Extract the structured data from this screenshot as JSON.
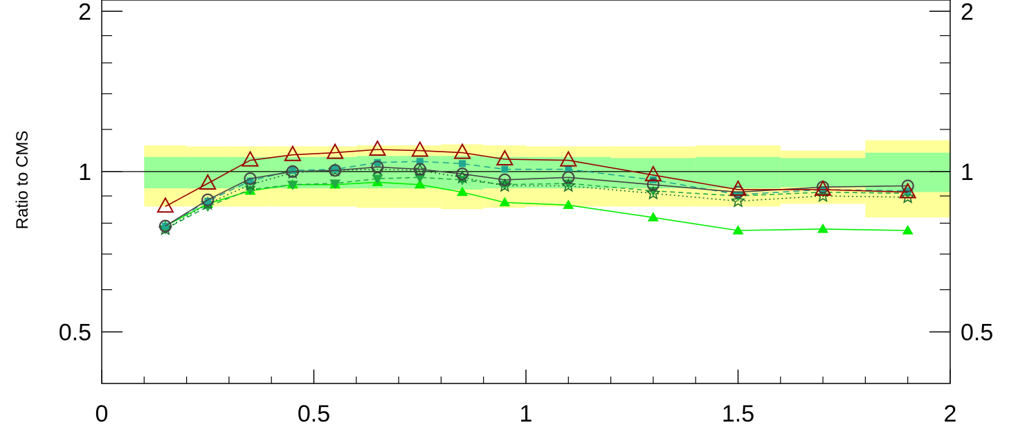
{
  "chart_data": {
    "type": "line",
    "title": "",
    "xlabel": "",
    "ylabel": "Ratio to CMS",
    "xlim": [
      0,
      2
    ],
    "ylim": [
      0.4,
      2.1
    ],
    "yscale": "log",
    "x_ticks": [
      {
        "value": 0,
        "label": "0"
      },
      {
        "value": 0.5,
        "label": "0.5"
      },
      {
        "value": 1,
        "label": "1"
      },
      {
        "value": 1.5,
        "label": "1.5"
      },
      {
        "value": 2,
        "label": "2"
      }
    ],
    "y_ticks": [
      {
        "value": 0.5,
        "label": "0.5"
      },
      {
        "value": 1,
        "label": "1"
      },
      {
        "value": 2,
        "label": "2"
      }
    ],
    "reference_line": 1,
    "bins": [
      0.1,
      0.2,
      0.3,
      0.4,
      0.5,
      0.6,
      0.7,
      0.8,
      0.9,
      1.0,
      1.2,
      1.4,
      1.6,
      1.8,
      2.0
    ],
    "yellow_band": {
      "color": "#ffff99",
      "lower": [
        0.86,
        0.86,
        0.86,
        0.86,
        0.86,
        0.855,
        0.855,
        0.85,
        0.855,
        0.86,
        0.86,
        0.86,
        0.87,
        0.82
      ],
      "upper": [
        1.12,
        1.115,
        1.115,
        1.115,
        1.115,
        1.12,
        1.12,
        1.125,
        1.12,
        1.115,
        1.115,
        1.12,
        1.095,
        1.145
      ]
    },
    "green_band": {
      "color": "#99ff99",
      "lower": [
        0.93,
        0.93,
        0.93,
        0.93,
        0.93,
        0.93,
        0.93,
        0.925,
        0.93,
        0.93,
        0.93,
        0.93,
        0.935,
        0.915
      ],
      "upper": [
        1.065,
        1.065,
        1.065,
        1.065,
        1.065,
        1.07,
        1.07,
        1.07,
        1.065,
        1.065,
        1.06,
        1.065,
        1.06,
        1.085
      ]
    },
    "x": [
      0.15,
      0.25,
      0.35,
      0.45,
      0.55,
      0.65,
      0.75,
      0.85,
      0.95,
      1.1,
      1.3,
      1.5,
      1.7,
      1.9
    ],
    "series": [
      {
        "color": "#00ee00",
        "dash": "",
        "marker": "triangle-up-filled",
        "values": [
          0.79,
          0.87,
          0.92,
          0.945,
          0.945,
          0.955,
          0.945,
          0.915,
          0.875,
          0.865,
          0.82,
          0.775,
          0.78,
          0.775
        ]
      },
      {
        "color": "#22aa44",
        "dash": "7,5",
        "marker": "triangle-down-filled",
        "values": [
          0.78,
          0.86,
          0.925,
          0.945,
          0.95,
          0.97,
          0.975,
          0.965,
          0.945,
          0.95,
          0.92,
          0.9,
          0.915,
          0.91
        ]
      },
      {
        "color": "#1a6e2e",
        "dash": "2,4",
        "marker": "star",
        "values": [
          0.78,
          0.87,
          0.945,
          0.995,
          1.005,
          1.01,
          1.005,
          0.975,
          0.94,
          0.94,
          0.91,
          0.88,
          0.9,
          0.895
        ]
      },
      {
        "color": "#22a890",
        "dash": "9,6",
        "marker": "square-filled",
        "values": [
          0.79,
          0.88,
          0.96,
          1.005,
          1.01,
          1.04,
          1.045,
          1.035,
          1.01,
          1.01,
          0.965,
          0.905,
          0.925,
          0.92
        ]
      },
      {
        "color": "#444444",
        "dash": "",
        "marker": "circle-open",
        "values": [
          0.79,
          0.885,
          0.97,
          1.0,
          1.005,
          1.02,
          1.01,
          0.99,
          0.965,
          0.975,
          0.945,
          0.915,
          0.935,
          0.94
        ]
      },
      {
        "color": "#990000",
        "dash": "",
        "marker": "triangle-up-open",
        "values": [
          0.86,
          0.95,
          1.05,
          1.075,
          1.085,
          1.1,
          1.095,
          1.085,
          1.055,
          1.05,
          0.985,
          0.925,
          0.925,
          0.915
        ]
      }
    ]
  }
}
